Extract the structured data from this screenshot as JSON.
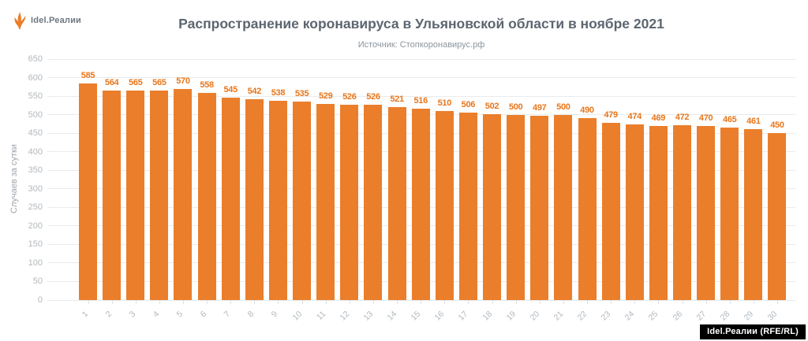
{
  "logo": {
    "text": "Idel.Реалии",
    "color": "#EA7E2B"
  },
  "header": {
    "title": "Распространение коронавируса в Ульяновской области в ноябре 2021",
    "subtitle": "Источник: Стопкоронавирус.рф"
  },
  "chart_data": {
    "type": "bar",
    "title": "Распространение коронавируса в Ульяновской области в ноябре 2021",
    "subtitle": "Источник: Стопкоронавирус.рф",
    "xlabel": "",
    "ylabel": "Случаев за сутки",
    "categories": [
      "1",
      "2",
      "3",
      "4",
      "5",
      "6",
      "7",
      "8",
      "9",
      "10",
      "11",
      "12",
      "13",
      "14",
      "15",
      "16",
      "17",
      "18",
      "19",
      "20",
      "21",
      "22",
      "23",
      "24",
      "25",
      "26",
      "27",
      "28",
      "29",
      "30"
    ],
    "values": [
      585,
      564,
      565,
      565,
      570,
      558,
      545,
      542,
      538,
      535,
      529,
      526,
      526,
      521,
      516,
      510,
      506,
      502,
      500,
      497,
      500,
      490,
      479,
      474,
      469,
      472,
      470,
      465,
      461,
      450
    ],
    "ylim": [
      0,
      650
    ],
    "ytick_step": 50,
    "grid": true,
    "legend": "none",
    "bar_color": "#EA7E2B",
    "value_label_color": "#E8761B"
  },
  "footer": {
    "badge": "Idel.Реалии (RFE/RL)"
  }
}
